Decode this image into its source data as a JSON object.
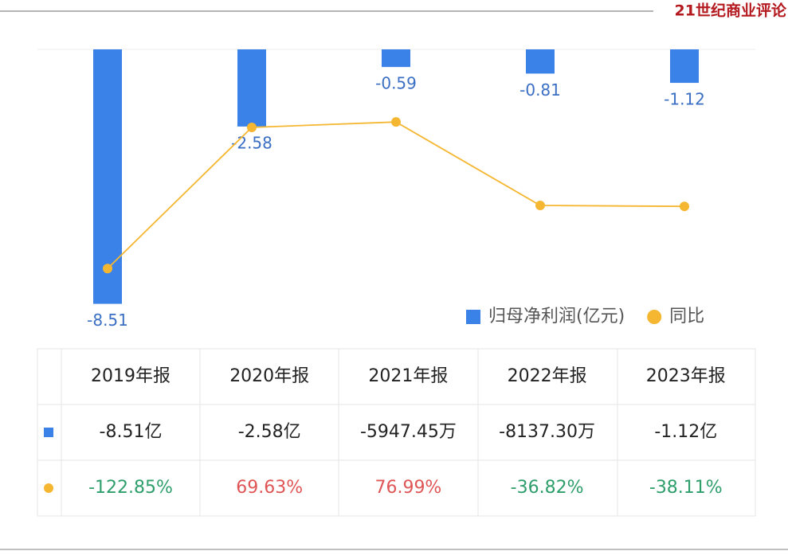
{
  "header": {
    "logo": "21世纪商业评论"
  },
  "chart_data": {
    "type": "bar",
    "categories": [
      "2019年报",
      "2020年报",
      "2021年报",
      "2022年报",
      "2023年报"
    ],
    "series": [
      {
        "name": "归母净利润(亿元)",
        "type": "bar",
        "color": "#3b82e8",
        "values": [
          -8.51,
          -2.58,
          -0.59,
          -0.81,
          -1.12
        ]
      },
      {
        "name": "同比",
        "type": "line",
        "axis": "y2",
        "color": "#f5b731",
        "values": [
          -122.85,
          69.63,
          76.99,
          -36.82,
          -38.11
        ]
      }
    ],
    "ylim": [
      -9,
      0
    ],
    "y2lim": [
      -191,
      176
    ],
    "legend": "lower right"
  },
  "table": {
    "header": [
      "2019年报",
      "2020年报",
      "2021年报",
      "2022年报",
      "2023年报"
    ],
    "rows": [
      [
        "-8.51亿",
        "-2.58亿",
        "-5947.45万",
        "-8137.30万",
        "-1.12亿"
      ],
      [
        "-122.85%",
        "69.63%",
        "76.99%",
        "-36.82%",
        "-38.11%"
      ]
    ]
  }
}
